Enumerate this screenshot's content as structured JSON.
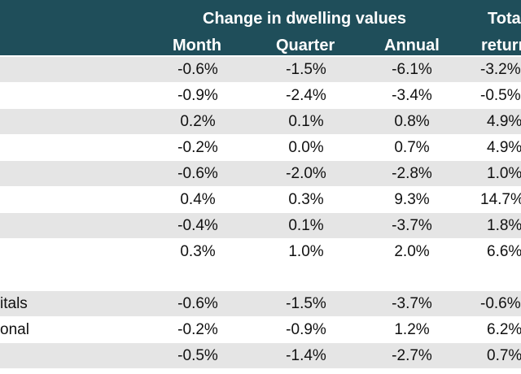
{
  "header": {
    "group_title": "Change in dwelling values",
    "total_title": "Total",
    "columns": {
      "month": "Month",
      "quarter": "Quarter",
      "annual": "Annual",
      "total": "return"
    }
  },
  "rows": [
    {
      "label": "",
      "month": "-0.6%",
      "quarter": "-1.5%",
      "annual": "-6.1%",
      "total": "-3.2%"
    },
    {
      "label": "",
      "month": "-0.9%",
      "quarter": "-2.4%",
      "annual": "-3.4%",
      "total": "-0.5%"
    },
    {
      "label": "",
      "month": "0.2%",
      "quarter": "0.1%",
      "annual": "0.8%",
      "total": "4.9%"
    },
    {
      "label": "",
      "month": "-0.2%",
      "quarter": "0.0%",
      "annual": "0.7%",
      "total": "4.9%"
    },
    {
      "label": "",
      "month": "-0.6%",
      "quarter": "-2.0%",
      "annual": "-2.8%",
      "total": "1.0%"
    },
    {
      "label": "",
      "month": "0.4%",
      "quarter": "0.3%",
      "annual": "9.3%",
      "total": "14.7%"
    },
    {
      "label": "",
      "month": "-0.4%",
      "quarter": "0.1%",
      "annual": "-3.7%",
      "total": "1.8%"
    },
    {
      "label": "",
      "month": "0.3%",
      "quarter": "1.0%",
      "annual": "2.0%",
      "total": "6.6%"
    },
    {
      "label": "itals",
      "month": "-0.6%",
      "quarter": "-1.5%",
      "annual": "-3.7%",
      "total": "-0.6%"
    },
    {
      "label": "onal",
      "month": "-0.2%",
      "quarter": "-0.9%",
      "annual": "1.2%",
      "total": "6.2%"
    },
    {
      "label": "",
      "month": "-0.5%",
      "quarter": "-1.4%",
      "annual": "-2.7%",
      "total": "0.7%"
    }
  ],
  "colors": {
    "header_bg": "#1f4e5a",
    "header_text": "#ffffff",
    "row_shade": "#e5e5e5",
    "row_plain": "#ffffff",
    "text": "#111111"
  }
}
